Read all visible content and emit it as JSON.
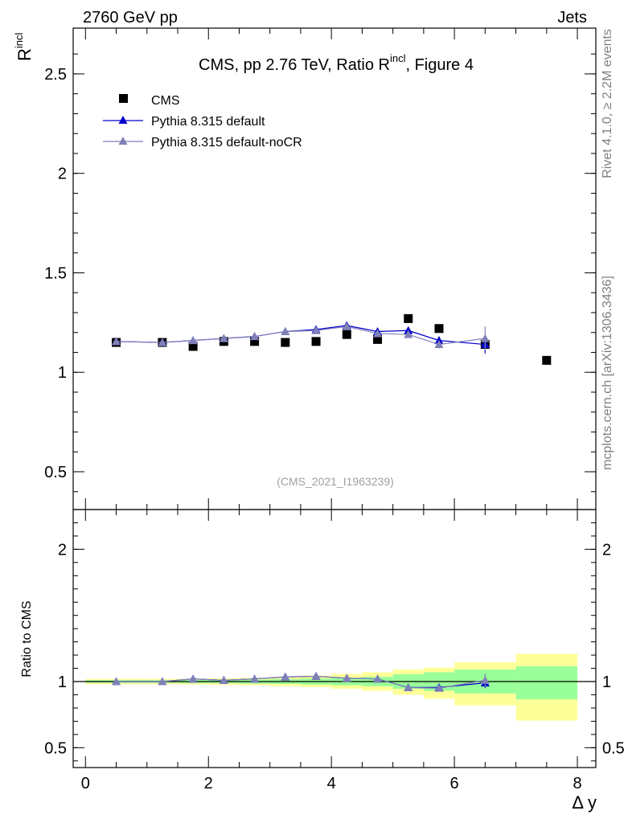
{
  "header": {
    "energy_label": "2760 GeV pp",
    "process_label": "Jets"
  },
  "side": {
    "rivet_label": "Rivet 4.1.0, ≥ 2.2M events",
    "mcplots_label": "mcplots.cern.ch [arXiv:1306.3436]"
  },
  "analysis_id": "(CMS_2021_I1963239)",
  "colors": {
    "data": "#000000",
    "default": "#0000cc",
    "nocr": "#8080b8",
    "band_inner": "#99ff99",
    "band_outer": "#ffff99"
  },
  "chart_data": [
    {
      "type": "scatter",
      "title_main": "CMS, pp 2.76 TeV, Ratio R",
      "title_sup": "incl",
      "title_tail": ", Figure 4",
      "ylabel_main": "R",
      "ylabel_sup": "incl",
      "ylim": [
        0.31,
        2.73
      ],
      "yticks": [
        0.5,
        1,
        1.5,
        2,
        2.5
      ],
      "ytick_labels": [
        "0.5",
        "1",
        "1.5",
        "2",
        "2.5"
      ],
      "legend": [
        {
          "key": "data",
          "label": "CMS"
        },
        {
          "key": "default",
          "label": "Pythia 8.315 default"
        },
        {
          "key": "nocr",
          "label": "Pythia 8.315 default-noCR"
        }
      ],
      "series": [
        {
          "name": "CMS",
          "key": "data",
          "x": [
            0.5,
            1.25,
            1.75,
            2.25,
            2.75,
            3.25,
            3.75,
            4.25,
            4.75,
            5.25,
            5.75,
            6.5,
            7.5
          ],
          "values": [
            1.15,
            1.15,
            1.13,
            1.155,
            1.155,
            1.15,
            1.155,
            1.19,
            1.165,
            1.27,
            1.22,
            1.14,
            1.06
          ]
        },
        {
          "name": "Pythia 8.315 default",
          "key": "default",
          "x": [
            0.5,
            1.25,
            1.75,
            2.25,
            2.75,
            3.25,
            3.75,
            4.25,
            4.75,
            5.25,
            5.75,
            6.5
          ],
          "values": [
            1.155,
            1.15,
            1.16,
            1.17,
            1.18,
            1.205,
            1.215,
            1.235,
            1.205,
            1.21,
            1.16,
            1.14
          ],
          "errors": [
            0.004,
            0.004,
            0.004,
            0.004,
            0.005,
            0.005,
            0.006,
            0.007,
            0.008,
            0.015,
            0.02,
            0.045
          ]
        },
        {
          "name": "Pythia 8.315 default-noCR",
          "key": "nocr",
          "x": [
            0.5,
            1.25,
            1.75,
            2.25,
            2.75,
            3.25,
            3.75,
            4.25,
            4.75,
            5.25,
            5.75,
            6.5
          ],
          "values": [
            1.155,
            1.15,
            1.16,
            1.17,
            1.18,
            1.205,
            1.21,
            1.23,
            1.195,
            1.19,
            1.14,
            1.17
          ],
          "errors": [
            0.004,
            0.004,
            0.004,
            0.004,
            0.005,
            0.005,
            0.006,
            0.007,
            0.008,
            0.012,
            0.02,
            0.06
          ]
        }
      ]
    },
    {
      "type": "scatter",
      "ylabel": "Ratio to CMS",
      "xlabel": "Δ y",
      "xlim": [
        -0.2,
        8.3
      ],
      "xticks": [
        0,
        2,
        4,
        6,
        8
      ],
      "xtick_labels": [
        "0",
        "2",
        "4",
        "6",
        "8"
      ],
      "ylim": [
        0.35,
        2.3
      ],
      "yticks": [
        0.5,
        1,
        2
      ],
      "ytick_labels": [
        "0.5",
        "1",
        "2"
      ],
      "bands": {
        "edges": [
          0,
          1,
          1.5,
          2,
          2.5,
          3,
          3.5,
          4,
          4.5,
          5,
          5.5,
          6,
          7,
          8
        ],
        "inner_lo": [
          0.99,
          0.99,
          0.988,
          0.988,
          0.985,
          0.982,
          0.978,
          0.972,
          0.965,
          0.945,
          0.93,
          0.91,
          0.865
        ],
        "inner_hi": [
          1.01,
          1.01,
          1.012,
          1.012,
          1.015,
          1.018,
          1.022,
          1.028,
          1.035,
          1.055,
          1.07,
          1.09,
          1.115
        ],
        "outer_lo": [
          0.98,
          0.98,
          0.978,
          0.975,
          0.972,
          0.965,
          0.958,
          0.945,
          0.93,
          0.9,
          0.87,
          0.82,
          0.705
        ],
        "outer_hi": [
          1.02,
          1.02,
          1.022,
          1.025,
          1.028,
          1.035,
          1.045,
          1.058,
          1.07,
          1.09,
          1.105,
          1.145,
          1.21
        ]
      },
      "series": [
        {
          "name": "Pythia 8.315 default",
          "key": "default",
          "x": [
            0.5,
            1.25,
            1.75,
            2.25,
            2.75,
            3.25,
            3.75,
            4.25,
            4.75,
            5.25,
            5.75,
            6.5
          ],
          "values": [
            1.0,
            1.0,
            1.02,
            1.01,
            1.02,
            1.035,
            1.04,
            1.025,
            1.02,
            0.955,
            0.955,
            0.99
          ],
          "errors": [
            0.004,
            0.004,
            0.004,
            0.004,
            0.005,
            0.005,
            0.006,
            0.007,
            0.008,
            0.015,
            0.02,
            0.04
          ]
        },
        {
          "name": "Pythia 8.315 default-noCR",
          "key": "nocr",
          "x": [
            0.5,
            1.25,
            1.75,
            2.25,
            2.75,
            3.25,
            3.75,
            4.25,
            4.75,
            5.25,
            5.75,
            6.5
          ],
          "values": [
            1.0,
            1.0,
            1.02,
            1.01,
            1.02,
            1.035,
            1.04,
            1.025,
            1.02,
            0.955,
            0.95,
            1.01
          ],
          "errors": [
            0.004,
            0.004,
            0.004,
            0.004,
            0.005,
            0.005,
            0.006,
            0.007,
            0.008,
            0.012,
            0.02,
            0.05
          ]
        }
      ]
    }
  ]
}
